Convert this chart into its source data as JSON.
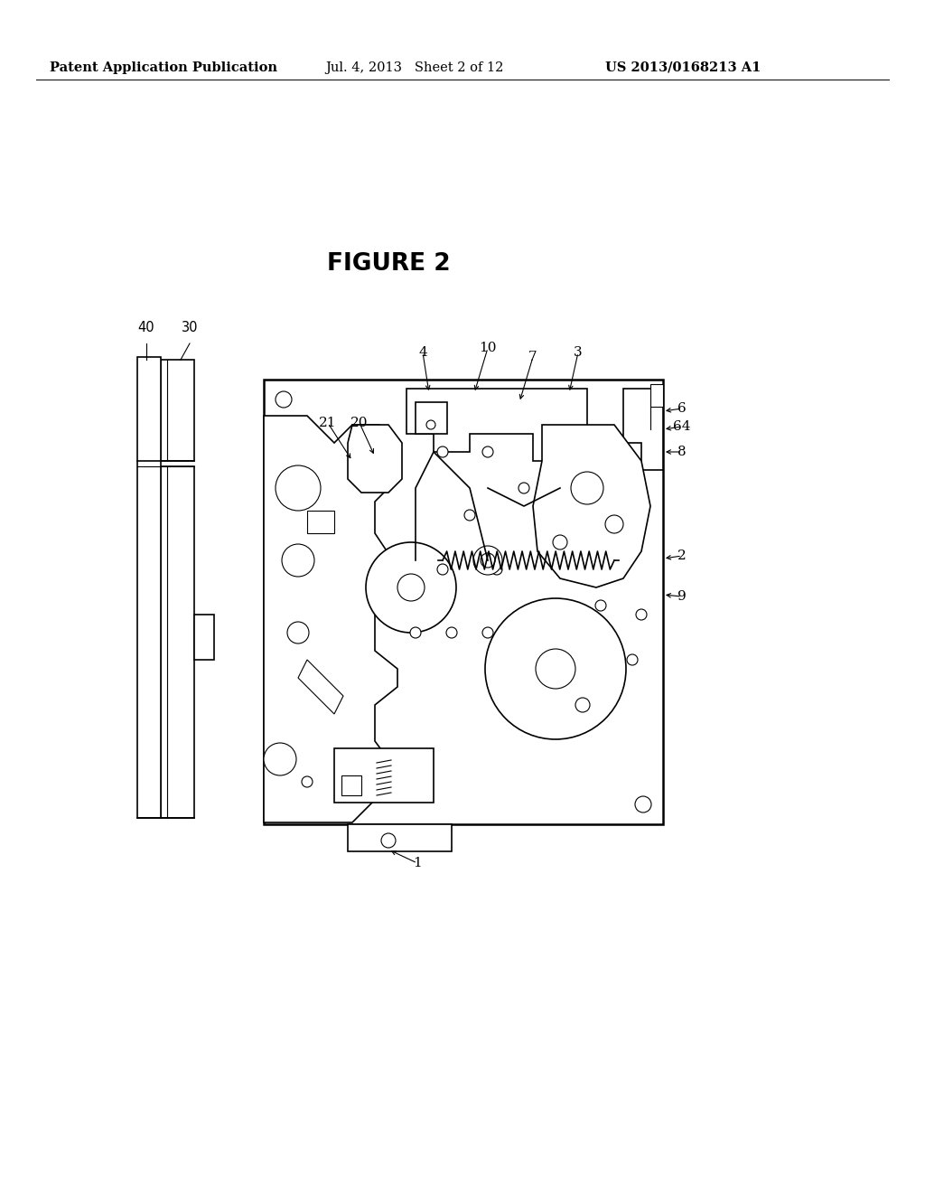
{
  "bg_color": "#ffffff",
  "header_left": "Patent Application Publication",
  "header_mid": "Jul. 4, 2013   Sheet 2 of 12",
  "header_right": "US 2013/0168213 A1",
  "figure_title": "FIGURE 2",
  "header_fontsize": 11,
  "title_fontsize": 20,
  "lw_thin": 0.8,
  "lw_med": 1.2,
  "lw_thick": 1.8
}
